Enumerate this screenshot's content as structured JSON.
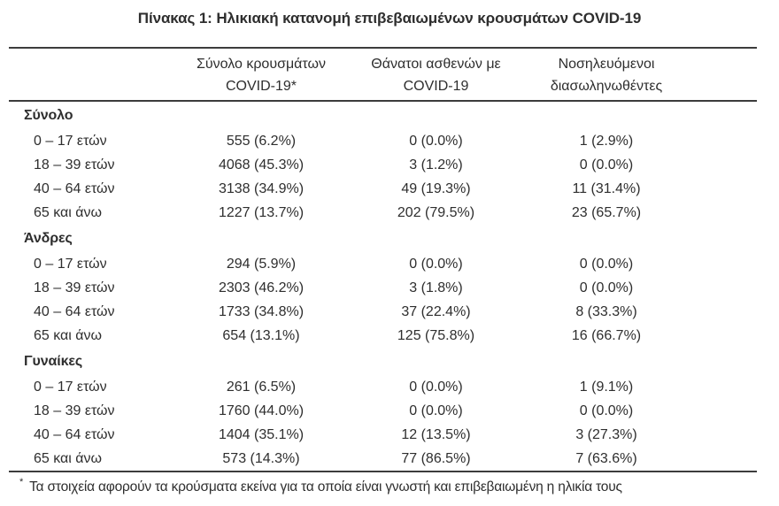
{
  "page": {
    "title": "Πίνακας 1: Ηλικιακή κατανομή επιβεβαιωμένων κρουσμάτων COVID-19",
    "footnote_marker": "*",
    "footnote_text": "Τα στοιχεία αφορούν τα κρούσματα εκείνα για τα οποία είναι γνωστή και επιβεβαιωμένη η ηλικία τους"
  },
  "colors": {
    "text": "#2e2e2e",
    "rule": "#3c3c3c",
    "background": "#ffffff"
  },
  "table": {
    "columns": [
      {
        "line1": "Σύνολο κρουσμάτων",
        "line2": "COVID-19*"
      },
      {
        "line1": "Θάνατοι ασθενών με",
        "line2": "COVID-19"
      },
      {
        "line1": "Νοσηλευόμενοι",
        "line2": "διασωληνωθέντες"
      }
    ],
    "sections": [
      {
        "label": "Σύνολο",
        "rows": [
          {
            "label": "0 – 17 ετών",
            "cases": "555 (6.2%)",
            "deaths": "0 (0.0%)",
            "intubated": "1 (2.9%)"
          },
          {
            "label": "18 – 39 ετών",
            "cases": "4068 (45.3%)",
            "deaths": "3 (1.2%)",
            "intubated": "0 (0.0%)"
          },
          {
            "label": "40 – 64 ετών",
            "cases": "3138 (34.9%)",
            "deaths": "49 (19.3%)",
            "intubated": "11 (31.4%)"
          },
          {
            "label": "65 και άνω",
            "cases": "1227 (13.7%)",
            "deaths": "202 (79.5%)",
            "intubated": "23 (65.7%)"
          }
        ]
      },
      {
        "label": "Άνδρες",
        "rows": [
          {
            "label": "0 – 17 ετών",
            "cases": "294 (5.9%)",
            "deaths": "0 (0.0%)",
            "intubated": "0 (0.0%)"
          },
          {
            "label": "18 – 39 ετών",
            "cases": "2303 (46.2%)",
            "deaths": "3 (1.8%)",
            "intubated": "0 (0.0%)"
          },
          {
            "label": "40 – 64 ετών",
            "cases": "1733 (34.8%)",
            "deaths": "37 (22.4%)",
            "intubated": "8 (33.3%)"
          },
          {
            "label": "65 και άνω",
            "cases": "654 (13.1%)",
            "deaths": "125 (75.8%)",
            "intubated": "16 (66.7%)"
          }
        ]
      },
      {
        "label": "Γυναίκες",
        "rows": [
          {
            "label": "0 – 17 ετών",
            "cases": "261 (6.5%)",
            "deaths": "0 (0.0%)",
            "intubated": "1 (9.1%)"
          },
          {
            "label": "18 – 39 ετών",
            "cases": "1760 (44.0%)",
            "deaths": "0 (0.0%)",
            "intubated": "0 (0.0%)"
          },
          {
            "label": "40 – 64 ετών",
            "cases": "1404 (35.1%)",
            "deaths": "12 (13.5%)",
            "intubated": "3 (27.3%)"
          },
          {
            "label": "65 και άνω",
            "cases": "573 (14.3%)",
            "deaths": "77 (86.5%)",
            "intubated": "7 (63.6%)"
          }
        ]
      }
    ]
  }
}
